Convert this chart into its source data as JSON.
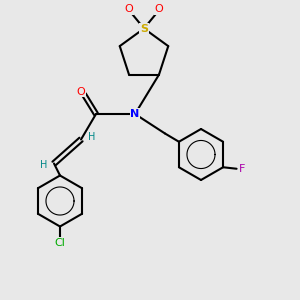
{
  "background_color": "#e8e8e8",
  "bond_color": "#000000",
  "atom_colors": {
    "O": "#ff0000",
    "S": "#ccaa00",
    "N": "#0000ff",
    "F": "#aa00aa",
    "Cl": "#00aa00",
    "H": "#008888",
    "C": "#000000"
  },
  "figsize": [
    3.0,
    3.0
  ],
  "dpi": 100
}
